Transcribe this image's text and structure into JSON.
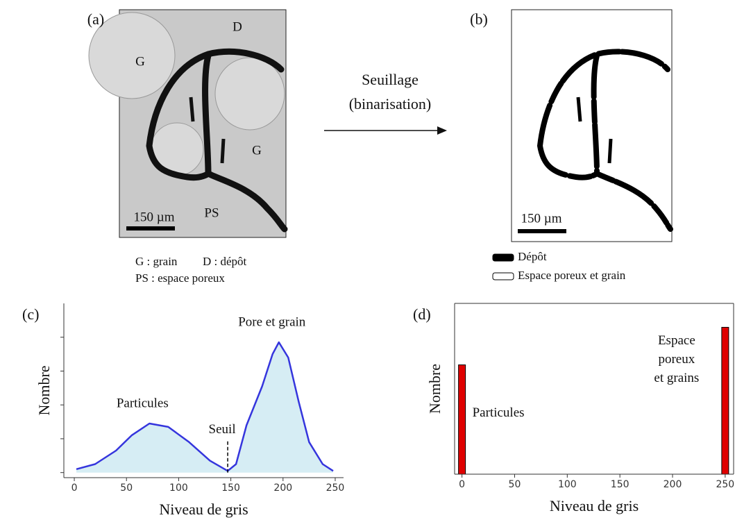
{
  "panels": {
    "a": {
      "label": "(a)",
      "image_labels": [
        "G",
        "D",
        "G",
        "PS"
      ],
      "scale_bar": "150 µm",
      "caption": [
        "G : grain",
        "D : dépôt",
        "PS : espace poreux"
      ]
    },
    "arrow": {
      "lines": [
        "Seuillage",
        "(binarisation)"
      ]
    },
    "b": {
      "label": "(b)",
      "scale_bar": "150 µm",
      "legend": [
        {
          "name": "Dépôt",
          "color": "#000000"
        },
        {
          "name": "Espace poreux et grain",
          "color": "#ffffff"
        }
      ]
    }
  },
  "chart_data": [
    {
      "type": "area",
      "panel_label": "(c)",
      "x_label": "Niveau de gris",
      "y_label": "Nombre",
      "x": [
        2,
        20,
        40,
        55,
        72,
        90,
        110,
        130,
        147,
        155,
        165,
        180,
        190,
        196,
        205,
        215,
        225,
        238,
        248
      ],
      "values": [
        2,
        5,
        13,
        22,
        29,
        27,
        18,
        7,
        1,
        5,
        28,
        51,
        70,
        77,
        68,
        42,
        18,
        5,
        1
      ],
      "color": "#3535dd",
      "fill": "#d6edf4",
      "xlim": [
        -10,
        258
      ],
      "ylim": [
        -3,
        100
      ],
      "xticks": [
        0,
        50,
        100,
        150,
        200,
        250
      ],
      "yticks": [
        0,
        20,
        40,
        60,
        80
      ],
      "ytick_labels": false,
      "annotations": [
        {
          "text": "Particules",
          "x": 72
        },
        {
          "text": "Pore et grain",
          "x": 196
        }
      ],
      "threshold": {
        "label": "Seuil",
        "x": 147
      }
    },
    {
      "type": "bar",
      "panel_label": "(d)",
      "x_label": "Niveau de gris",
      "y_label": "Nombre",
      "x": [
        0,
        250
      ],
      "values": [
        64,
        86
      ],
      "color": "#e00000",
      "xlim": [
        -7,
        258
      ],
      "ylim": [
        0,
        100
      ],
      "xticks": [
        0,
        50,
        100,
        150,
        200,
        250
      ],
      "annotations": [
        {
          "lines": [
            "Particules"
          ]
        },
        {
          "lines": [
            "Espace",
            "poreux",
            "et grains"
          ]
        }
      ]
    }
  ]
}
